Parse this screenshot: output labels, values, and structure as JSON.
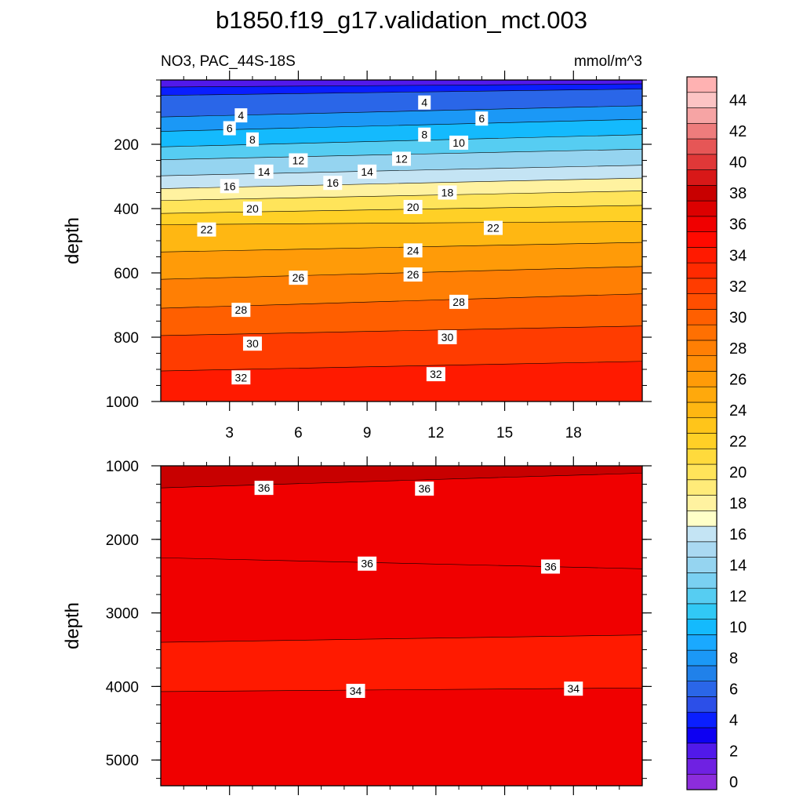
{
  "chart_data": {
    "type": "contour",
    "title": "b1850.f19_g17.validation_mct.003",
    "left_label": "NO3, PAC_44S-18S",
    "units_label": "mmol/m^3",
    "ylabel": "depth",
    "x_range": [
      0,
      21
    ],
    "x_ticks": [
      3,
      6,
      9,
      12,
      15,
      18
    ],
    "upper_panel": {
      "ylim": [
        1000,
        0
      ],
      "y_ticks": [
        200,
        400,
        600,
        800,
        1000
      ],
      "contours": [
        {
          "level": 0,
          "y": [
            0,
            0
          ]
        },
        {
          "level": 2,
          "y": [
            22,
            12
          ]
        },
        {
          "level": 4,
          "y": [
            48,
            28
          ]
        },
        {
          "level": 6,
          "y": [
            115,
            80
          ]
        },
        {
          "level": 8,
          "y": [
            160,
            122
          ]
        },
        {
          "level": 10,
          "y": [
            208,
            170
          ]
        },
        {
          "level": 12,
          "y": [
            248,
            215
          ]
        },
        {
          "level": 14,
          "y": [
            298,
            265
          ]
        },
        {
          "level": 16,
          "y": [
            338,
            305
          ]
        },
        {
          "level": 18,
          "y": [
            375,
            345
          ]
        },
        {
          "level": 20,
          "y": [
            415,
            390
          ]
        },
        {
          "level": 22,
          "y": [
            450,
            440
          ]
        },
        {
          "level": 24,
          "y": [
            535,
            505
          ]
        },
        {
          "level": 26,
          "y": [
            620,
            580
          ]
        },
        {
          "level": 28,
          "y": [
            710,
            665
          ]
        },
        {
          "level": 30,
          "y": [
            795,
            765
          ]
        },
        {
          "level": 32,
          "y": [
            905,
            875
          ]
        },
        {
          "level": 34,
          "y": [
            1000,
            1000
          ]
        }
      ],
      "labels": [
        {
          "text": "4",
          "x": 3.5,
          "y": 110
        },
        {
          "text": "4",
          "x": 11.5,
          "y": 70
        },
        {
          "text": "6",
          "x": 3.0,
          "y": 150
        },
        {
          "text": "6",
          "x": 14.0,
          "y": 120
        },
        {
          "text": "8",
          "x": 4.0,
          "y": 185
        },
        {
          "text": "8",
          "x": 11.5,
          "y": 170
        },
        {
          "text": "10",
          "x": 13.0,
          "y": 195
        },
        {
          "text": "12",
          "x": 6.0,
          "y": 250
        },
        {
          "text": "12",
          "x": 10.5,
          "y": 245
        },
        {
          "text": "14",
          "x": 4.5,
          "y": 285
        },
        {
          "text": "14",
          "x": 9.0,
          "y": 285
        },
        {
          "text": "16",
          "x": 3.0,
          "y": 330
        },
        {
          "text": "16",
          "x": 7.5,
          "y": 320
        },
        {
          "text": "18",
          "x": 12.5,
          "y": 350
        },
        {
          "text": "20",
          "x": 4.0,
          "y": 400
        },
        {
          "text": "20",
          "x": 11.0,
          "y": 395
        },
        {
          "text": "22",
          "x": 2.0,
          "y": 465
        },
        {
          "text": "22",
          "x": 14.5,
          "y": 460
        },
        {
          "text": "24",
          "x": 11.0,
          "y": 530
        },
        {
          "text": "26",
          "x": 6.0,
          "y": 615
        },
        {
          "text": "26",
          "x": 11.0,
          "y": 605
        },
        {
          "text": "28",
          "x": 3.5,
          "y": 715
        },
        {
          "text": "28",
          "x": 13.0,
          "y": 690
        },
        {
          "text": "30",
          "x": 4.0,
          "y": 820
        },
        {
          "text": "30",
          "x": 12.5,
          "y": 800
        },
        {
          "text": "32",
          "x": 3.5,
          "y": 925
        },
        {
          "text": "32",
          "x": 12.0,
          "y": 915
        }
      ]
    },
    "lower_panel": {
      "ylim": [
        5350,
        1000
      ],
      "y_ticks": [
        1000,
        2000,
        3000,
        4000,
        5000
      ],
      "contours": [
        {
          "level": 38,
          "y": [
            1000,
            1000
          ]
        },
        {
          "level": 36,
          "y": [
            1300,
            1100
          ]
        },
        {
          "level": 36,
          "y": [
            2250,
            2400
          ]
        },
        {
          "level": 34,
          "y": [
            3400,
            3300
          ]
        },
        {
          "level": 34,
          "y": [
            4070,
            4020
          ]
        }
      ],
      "labels": [
        {
          "text": "36",
          "x": 4.5,
          "y": 1300
        },
        {
          "text": "36",
          "x": 11.5,
          "y": 1310
        },
        {
          "text": "36",
          "x": 9.0,
          "y": 2330
        },
        {
          "text": "36",
          "x": 17.0,
          "y": 2370
        },
        {
          "text": "34",
          "x": 8.5,
          "y": 4060
        },
        {
          "text": "34",
          "x": 18.0,
          "y": 4030
        }
      ]
    },
    "colorbar": {
      "labels": [
        0,
        2,
        4,
        6,
        8,
        10,
        12,
        14,
        16,
        18,
        20,
        22,
        24,
        26,
        28,
        30,
        32,
        34,
        36,
        38,
        40,
        42,
        44
      ],
      "colors": [
        "#8c2ddc",
        "#6f21e2",
        "#5119ea",
        "#0d00f2",
        "#0a1fff",
        "#2c4fe8",
        "#2a66e8",
        "#2081ea",
        "#1b98f6",
        "#1aa9ff",
        "#14bafd",
        "#31c9f5",
        "#56cdf2",
        "#7ad0f2",
        "#95d4f0",
        "#aad9f2",
        "#c4e4f4",
        "#ffffc8",
        "#fff2a0",
        "#ffeb79",
        "#ffe45a",
        "#ffda3c",
        "#ffd026",
        "#ffc51a",
        "#ffb712",
        "#ffa90c",
        "#ff9b08",
        "#ff8d06",
        "#ff7f04",
        "#ff7002",
        "#ff5f00",
        "#ff4e00",
        "#ff3c00",
        "#ff2a00",
        "#ff1a00",
        "#ff0a00",
        "#f00000",
        "#dc0000",
        "#c80000",
        "#d81818",
        "#e03838",
        "#e65656",
        "#ee7c7c",
        "#f6a4a4",
        "#fcc4c4",
        "#ffb2b2"
      ]
    }
  }
}
